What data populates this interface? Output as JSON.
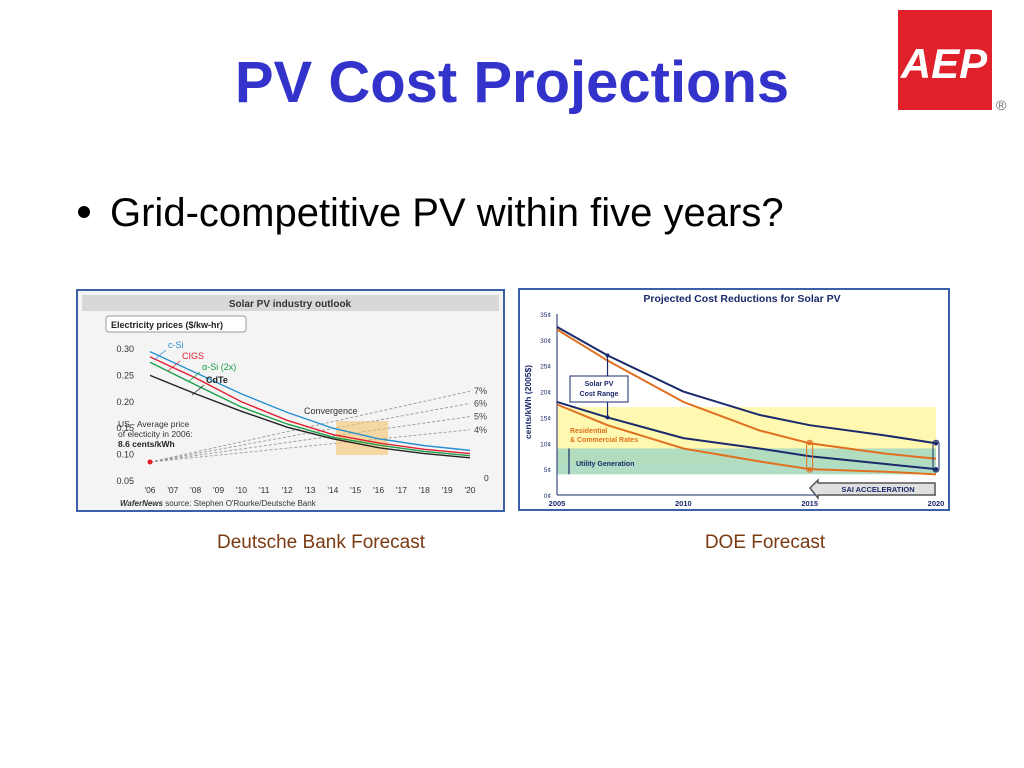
{
  "slide": {
    "title": "PV Cost Projections",
    "bullet": "Grid-competitive PV within five years?",
    "logo": {
      "text": "AEP",
      "mark": "®",
      "color": "#e0202a"
    },
    "caption_left": "Deutsche Bank Forecast",
    "caption_right": "DOE Forecast"
  },
  "chart_data": [
    {
      "type": "line",
      "title": "Solar PV industry outlook",
      "ylabel": "Electricity prices ($/kw-hr)",
      "x": [
        "'06",
        "'07",
        "'08",
        "'09",
        "'10",
        "'11",
        "'12",
        "'13",
        "'14",
        "'15",
        "'16",
        "'17",
        "'18",
        "'19",
        "'20"
      ],
      "yticks": [
        "0.30",
        "0.25",
        "0.20",
        "0.15",
        "0.10",
        "0.05"
      ],
      "ylim": [
        0.05,
        0.3
      ],
      "series": [
        {
          "name": "c-Si",
          "color": "#2a90d0",
          "x": [
            2006,
            2008,
            2010,
            2012,
            2014,
            2016,
            2018,
            2020
          ],
          "values": [
            0.295,
            0.255,
            0.215,
            0.18,
            0.15,
            0.13,
            0.117,
            0.108
          ]
        },
        {
          "name": "CIGS",
          "color": "#e02030",
          "x": [
            2006,
            2008,
            2010,
            2012,
            2014,
            2016,
            2018,
            2020
          ],
          "values": [
            0.285,
            0.245,
            0.2,
            0.165,
            0.138,
            0.122,
            0.11,
            0.102
          ]
        },
        {
          "name": "α-Si (2x)",
          "color": "#18a048",
          "x": [
            2006,
            2008,
            2010,
            2012,
            2014,
            2016,
            2018,
            2020
          ],
          "values": [
            0.275,
            0.232,
            0.19,
            0.158,
            0.133,
            0.118,
            0.106,
            0.098
          ]
        },
        {
          "name": "CdTe",
          "color": "#222222",
          "x": [
            2006,
            2008,
            2010,
            2012,
            2014,
            2016,
            2018,
            2020
          ],
          "values": [
            0.25,
            0.215,
            0.182,
            0.152,
            0.13,
            0.113,
            0.102,
            0.094
          ]
        }
      ],
      "grid_price_rates": [
        {
          "label": "7%",
          "end": 0.22
        },
        {
          "label": "6%",
          "end": 0.197
        },
        {
          "label": "5%",
          "end": 0.172
        },
        {
          "label": "4%",
          "end": 0.147
        }
      ],
      "grid_price_start": {
        "x": 2006,
        "value": 0.086
      },
      "right_axis_zero": "0",
      "annotations": {
        "convergence": "Convergence",
        "us_line1": "US - Average price",
        "us_line2": "of electicity in 2006:",
        "us_line3": "8.6 cents/kWh"
      },
      "source_italic": "WaferNews",
      "source_rest": " source: Stephen O'Rourke/Deutsche Bank"
    },
    {
      "type": "line",
      "title": "Projected Cost Reductions for Solar PV",
      "ylabel": "cents/kWh (2005$)",
      "xticks": [
        "2005",
        "2010",
        "2015",
        "2020"
      ],
      "yticks": [
        "35¢",
        "30¢",
        "25¢",
        "20¢",
        "15¢",
        "10¢",
        "5¢",
        "0¢"
      ],
      "ylim": [
        0,
        35
      ],
      "xlim": [
        2005,
        2020
      ],
      "bands": [
        {
          "name": "Residential & Commercial Rates",
          "label_line1": "Residential",
          "label_line2": "& Commercial Rates",
          "range": [
            6,
            17
          ],
          "color": "#fff7a8"
        },
        {
          "name": "Utility Generation",
          "range": [
            4,
            9
          ],
          "color": "#a8d8c0"
        }
      ],
      "range_label_line1": "Solar PV",
      "range_label_line2": "Cost Range",
      "acceleration_label": "SAI ACCELERATION",
      "series": [
        {
          "name": "upper-navy",
          "color": "#1a2a6a",
          "x": [
            2005,
            2007,
            2010,
            2013,
            2015,
            2018,
            2020
          ],
          "values": [
            32.5,
            27,
            20,
            15.5,
            13.5,
            11.5,
            10
          ]
        },
        {
          "name": "upper-orange",
          "color": "#e07020",
          "x": [
            2005,
            2007,
            2010,
            2013,
            2015,
            2018,
            2020
          ],
          "values": [
            32,
            26,
            18,
            12.5,
            10,
            8,
            7
          ]
        },
        {
          "name": "lower-navy",
          "color": "#1a2a6a",
          "x": [
            2005,
            2007,
            2010,
            2013,
            2015,
            2018,
            2020
          ],
          "values": [
            18,
            15,
            11,
            9,
            7.5,
            6,
            5
          ]
        },
        {
          "name": "lower-orange",
          "color": "#e07020",
          "x": [
            2005,
            2007,
            2010,
            2013,
            2015,
            2018,
            2020
          ],
          "values": [
            17.5,
            13.5,
            9,
            6.5,
            5,
            4.5,
            4
          ]
        }
      ]
    }
  ]
}
